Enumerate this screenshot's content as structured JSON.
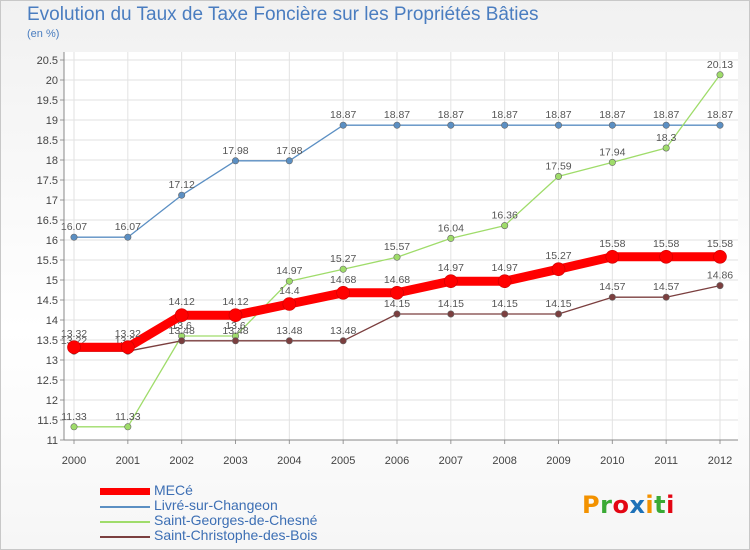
{
  "header": {
    "title": "Evolution du Taux de Taxe Foncière sur les Propriétés Bâties",
    "subtitle": "(en %)"
  },
  "logo": {
    "letters": [
      "P",
      "r",
      "o",
      "x",
      "i",
      "t",
      "i"
    ],
    "colors": [
      "#f39200",
      "#3aaa35",
      "#e30613",
      "#1d71b8",
      "#f39200",
      "#3aaa35",
      "#e30613"
    ]
  },
  "chart_data": {
    "type": "line",
    "title": "Evolution du Taux de Taxe Foncière sur les Propriétés Bâties",
    "ylabel": "(en %)",
    "xlabel": "",
    "ylim": [
      11,
      20.5
    ],
    "yticks": [
      "11",
      "11.5",
      "12",
      "12.5",
      "13",
      "13.5",
      "14",
      "14.5",
      "15",
      "15.5",
      "16",
      "16.5",
      "17",
      "17.5",
      "18",
      "18.5",
      "19",
      "19.5",
      "20",
      "20.5"
    ],
    "categories": [
      "2000",
      "2001",
      "2002",
      "2003",
      "2004",
      "2005",
      "2006",
      "2007",
      "2008",
      "2009",
      "2010",
      "2011",
      "2012"
    ],
    "series": [
      {
        "name": "Livré-sur-Changeon",
        "color": "#5b8fc3",
        "values": [
          16.07,
          16.07,
          17.12,
          17.98,
          17.98,
          18.87,
          18.87,
          18.87,
          18.87,
          18.87,
          18.87,
          18.87,
          18.87
        ],
        "labels": [
          "16.07",
          "16.07",
          "17.12",
          "17.98",
          "17.98",
          "18.87",
          "18.87",
          "18.87",
          "18.87",
          "18.87",
          "18.87",
          "18.87",
          "18.87"
        ]
      },
      {
        "name": "Saint-Georges-de-Chesné",
        "color": "#9fdc6a",
        "values": [
          11.33,
          11.33,
          13.6,
          13.6,
          14.97,
          15.27,
          15.57,
          16.04,
          16.36,
          17.59,
          17.94,
          18.3,
          20.13
        ],
        "labels": [
          "11.33",
          "11.33",
          "13.6",
          "13.6",
          "14.97",
          "15.27",
          "15.57",
          "16.04",
          "16.36",
          "17.59",
          "17.94",
          "18.3",
          "20.13"
        ]
      },
      {
        "name": "Saint-Christophe-des-Bois",
        "color": "#7b3f3f",
        "values": [
          13.22,
          13.22,
          13.48,
          13.48,
          13.48,
          13.48,
          14.15,
          14.15,
          14.15,
          14.15,
          14.57,
          14.57,
          14.86
        ],
        "labels": [
          "13.22",
          "13.22",
          "13.48",
          "13.48",
          "13.48",
          "13.48",
          "14.15",
          "14.15",
          "14.15",
          "14.15",
          "14.57",
          "14.57",
          "14.86"
        ]
      },
      {
        "name": "MECé",
        "color": "#ff0000",
        "values": [
          13.32,
          13.32,
          14.12,
          14.12,
          14.4,
          14.68,
          14.68,
          14.97,
          14.97,
          15.27,
          15.58,
          15.58,
          15.58
        ],
        "labels": [
          "13.32",
          "13.32",
          "14.12",
          "14.12",
          "14.4",
          "14.68",
          "14.68",
          "14.97",
          "14.97",
          "15.27",
          "15.58",
          "15.58",
          "15.58"
        ]
      }
    ],
    "legend": [
      "MECé",
      "Livré-sur-Changeon",
      "Saint-Georges-de-Chesné",
      "Saint-Christophe-des-Bois"
    ],
    "grid": true
  }
}
